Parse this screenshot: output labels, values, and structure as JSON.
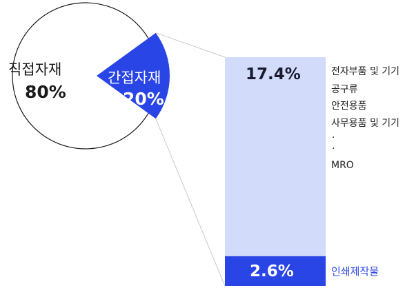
{
  "chart_data": {
    "type": "pie",
    "slices": [
      {
        "label": "직접자재",
        "value": 80,
        "display": "80%",
        "color": "#ffffff"
      },
      {
        "label": "간접자재",
        "value": 20,
        "display": "20%",
        "color": "#2a45e6"
      }
    ],
    "breakdown": {
      "type": "bar",
      "segments": [
        {
          "value": 17.4,
          "display": "17.4%",
          "color": "#d2dbfa",
          "items": [
            "전자부품 및 기기",
            "공구류",
            "안전용품",
            "사무용품 및 기기",
            "·",
            "·",
            "MRO"
          ]
        },
        {
          "value": 2.6,
          "display": "2.6%",
          "color": "#2a45e6",
          "items": [
            "인쇄제작물"
          ]
        }
      ]
    }
  },
  "colors": {
    "accent": "#2a45e6",
    "light": "#d2dbfa",
    "outline": "#1a1a1a"
  }
}
